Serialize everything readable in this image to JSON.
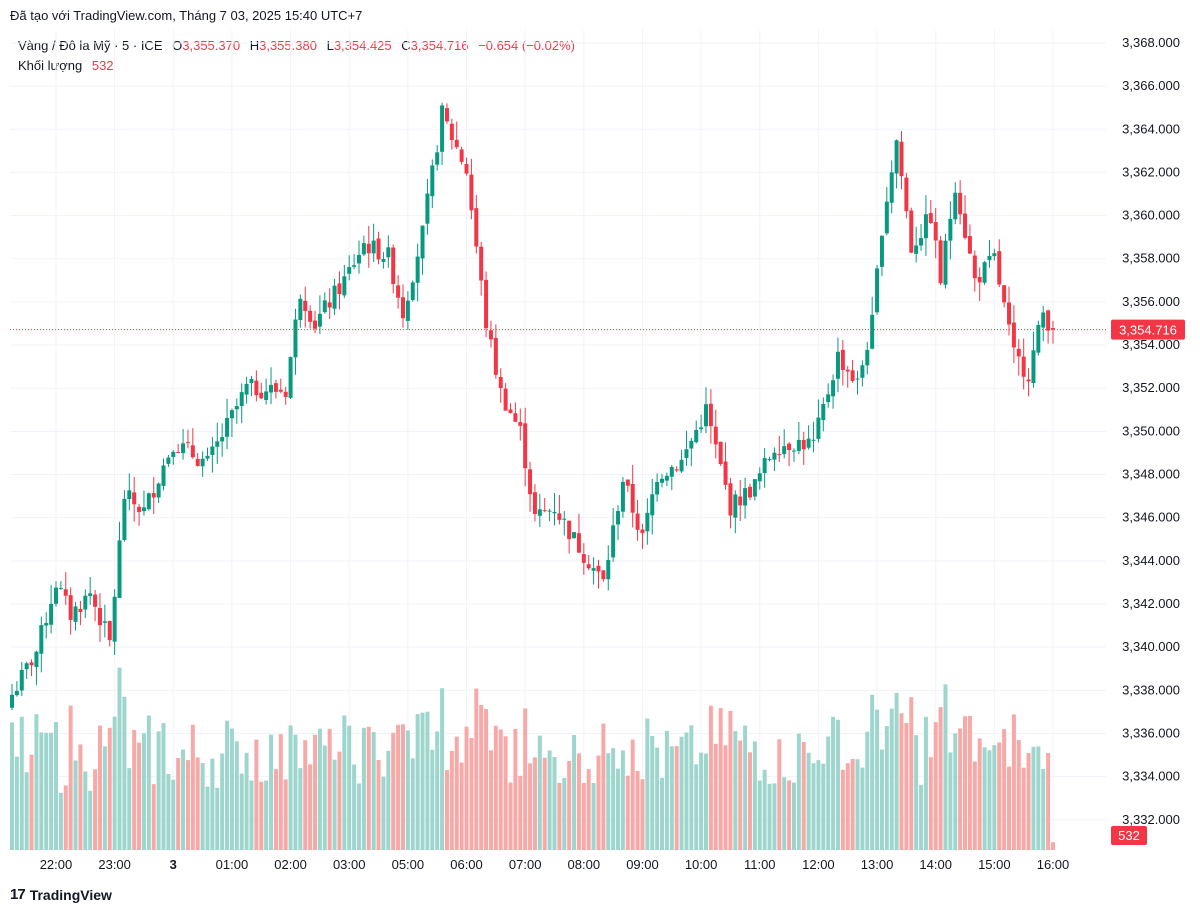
{
  "header": {
    "credit": "Đã tạo với TradingView.com, Tháng 7 03, 2025 15:40 UTC+7"
  },
  "legend": {
    "symbol": "Vàng / Đô la Mỹ · 5 · ICE",
    "open_label": "O",
    "open": "3,355.370",
    "high_label": "H",
    "high": "3,355.380",
    "low_label": "L",
    "low": "3,354.425",
    "close_label": "C",
    "close": "3,354.716",
    "change": "−0.654 (−0.02%)",
    "volume_label": "Khối lượng",
    "volume": "532"
  },
  "footer": {
    "logo_text": "TradingView",
    "logo_mark": "17"
  },
  "colors": {
    "up": "#089981",
    "down": "#f23645",
    "up_vol": "#9ed6cd",
    "down_vol": "#f7a9a7",
    "grid": "#f0f3fa",
    "text": "#131722"
  },
  "chart_data": {
    "type": "candlestick",
    "y_axis": {
      "min": 3330.6,
      "max": 3368.6,
      "ticks": [
        "3,368.000",
        "3,366.000",
        "3,364.000",
        "3,362.000",
        "3,360.000",
        "3,358.000",
        "3,356.000",
        "3,354.000",
        "3,352.000",
        "3,350.000",
        "3,348.000",
        "3,346.000",
        "3,344.000",
        "3,342.000",
        "3,340.000",
        "3,338.000",
        "3,336.000",
        "3,334.000",
        "3,332.000"
      ],
      "tick_values": [
        3368,
        3366,
        3364,
        3362,
        3360,
        3358,
        3356,
        3354,
        3352,
        3350,
        3348,
        3346,
        3344,
        3342,
        3340,
        3338,
        3336,
        3334,
        3332
      ]
    },
    "x_axis": {
      "labels": [
        "22:00",
        "23:00",
        "3",
        "01:00",
        "02:00",
        "03:00",
        "05:00",
        "06:00",
        "07:00",
        "08:00",
        "09:00",
        "10:00",
        "11:00",
        "12:00",
        "13:00",
        "14:00",
        "15:00",
        "16:00"
      ],
      "label_index": [
        9,
        21,
        33,
        45,
        57,
        69,
        81,
        93,
        105,
        117,
        129,
        141,
        153,
        165,
        177,
        189,
        201,
        213
      ]
    },
    "last_price": "3,354.716",
    "last_price_value": 3354.716,
    "last_volume": "532",
    "anchors": [
      {
        "i": 0,
        "p": 3337.8
      },
      {
        "i": 5,
        "p": 3339.8
      },
      {
        "i": 9,
        "p": 3343.0
      },
      {
        "i": 12,
        "p": 3341.5
      },
      {
        "i": 16,
        "p": 3342.5
      },
      {
        "i": 20,
        "p": 3340.2
      },
      {
        "i": 23,
        "p": 3347.0
      },
      {
        "i": 27,
        "p": 3346.3
      },
      {
        "i": 33,
        "p": 3349.5
      },
      {
        "i": 40,
        "p": 3348.5
      },
      {
        "i": 48,
        "p": 3352.0
      },
      {
        "i": 56,
        "p": 3351.9
      },
      {
        "i": 59,
        "p": 3356.5
      },
      {
        "i": 62,
        "p": 3355.0
      },
      {
        "i": 68,
        "p": 3357.0
      },
      {
        "i": 72,
        "p": 3358.7
      },
      {
        "i": 77,
        "p": 3358.1
      },
      {
        "i": 80,
        "p": 3355.5
      },
      {
        "i": 84,
        "p": 3359.2
      },
      {
        "i": 88,
        "p": 3364.7
      },
      {
        "i": 93,
        "p": 3362.1
      },
      {
        "i": 97,
        "p": 3355.0
      },
      {
        "i": 100,
        "p": 3351.8
      },
      {
        "i": 104,
        "p": 3350.0
      },
      {
        "i": 107,
        "p": 3346.0
      },
      {
        "i": 111,
        "p": 3346.5
      },
      {
        "i": 115,
        "p": 3345.0
      },
      {
        "i": 121,
        "p": 3343.0
      },
      {
        "i": 125,
        "p": 3347.8
      },
      {
        "i": 129,
        "p": 3345.0
      },
      {
        "i": 132,
        "p": 3348.0
      },
      {
        "i": 137,
        "p": 3348.6
      },
      {
        "i": 142,
        "p": 3351.0
      },
      {
        "i": 147,
        "p": 3346.5
      },
      {
        "i": 152,
        "p": 3347.5
      },
      {
        "i": 156,
        "p": 3349.3
      },
      {
        "i": 160,
        "p": 3349.5
      },
      {
        "i": 164,
        "p": 3349.4
      },
      {
        "i": 169,
        "p": 3353.5
      },
      {
        "i": 173,
        "p": 3352.2
      },
      {
        "i": 176,
        "p": 3355.0
      },
      {
        "i": 178,
        "p": 3359.5
      },
      {
        "i": 181,
        "p": 3363.5
      },
      {
        "i": 184,
        "p": 3358.5
      },
      {
        "i": 188,
        "p": 3360.0
      },
      {
        "i": 190,
        "p": 3357.0
      },
      {
        "i": 193,
        "p": 3361.5
      },
      {
        "i": 197,
        "p": 3357.0
      },
      {
        "i": 201,
        "p": 3358.0
      },
      {
        "i": 205,
        "p": 3353.5
      },
      {
        "i": 208,
        "p": 3352.7
      },
      {
        "i": 211,
        "p": 3355.5
      },
      {
        "i": 213,
        "p": 3354.7
      }
    ],
    "candle_count": 214,
    "volume_range": [
      0,
      100
    ]
  }
}
